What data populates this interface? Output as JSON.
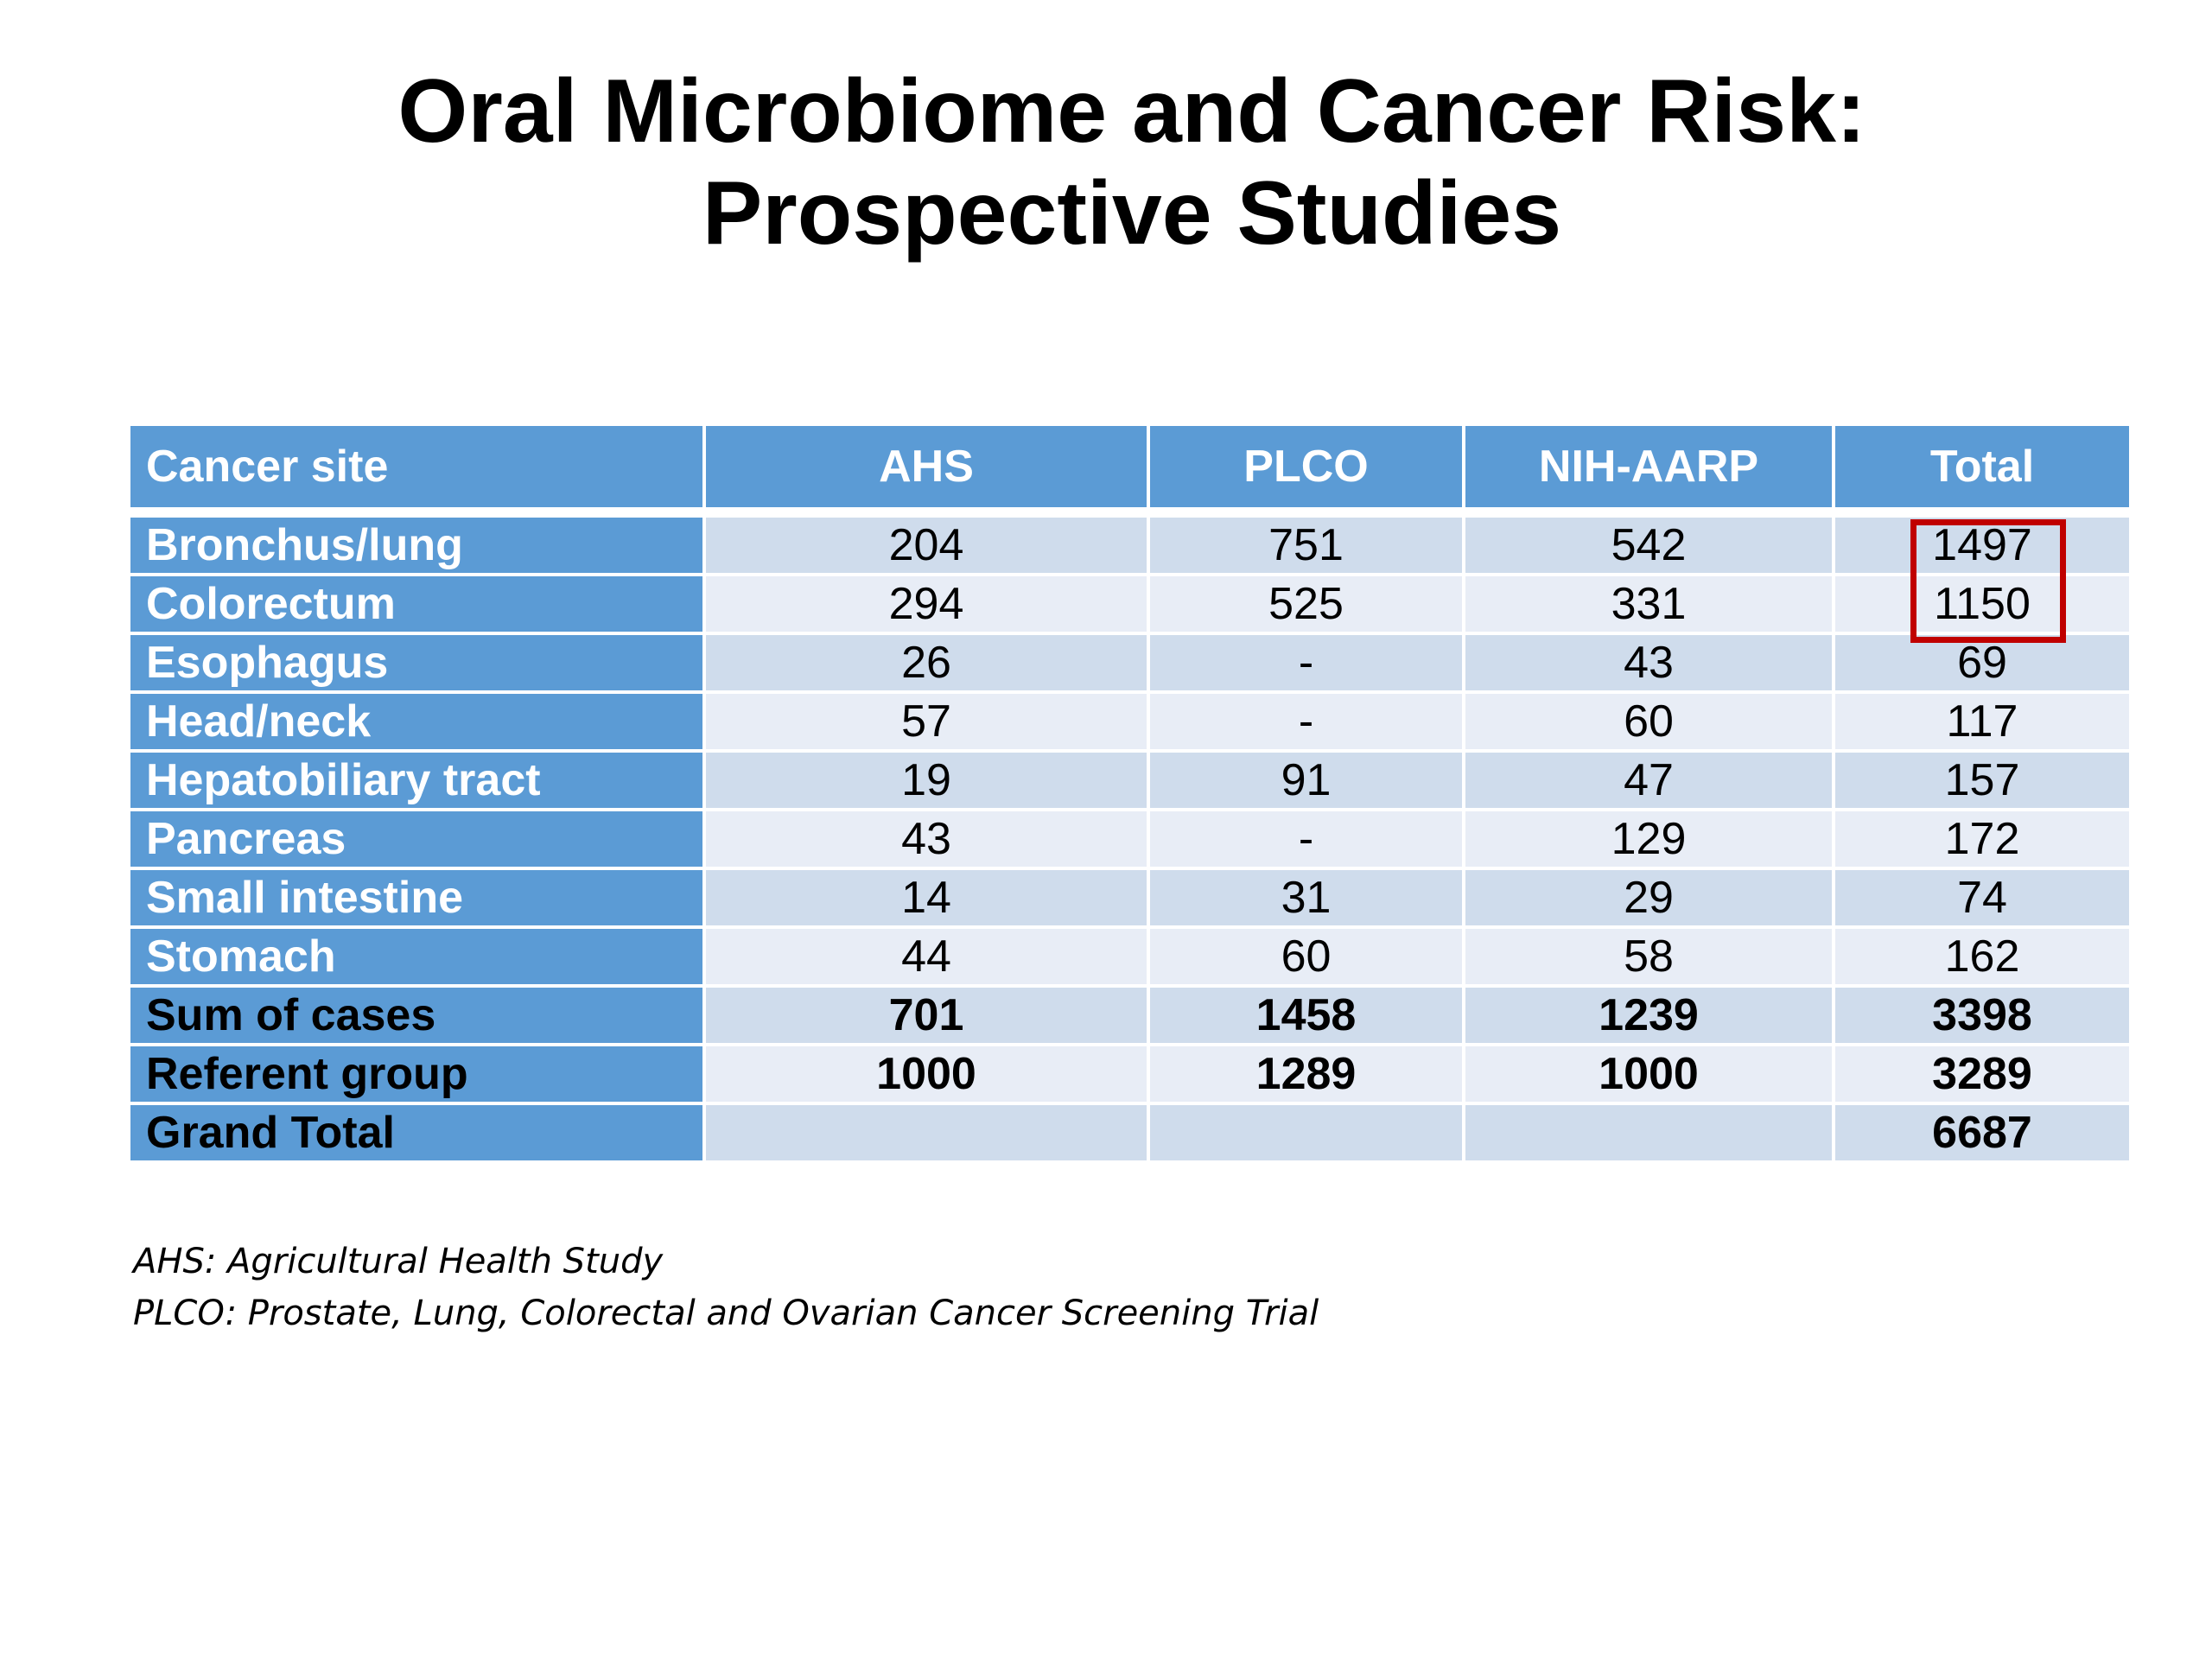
{
  "title": {
    "line1": "Oral Microbiome and Cancer Risk:",
    "line2": "Prospective Studies"
  },
  "table": {
    "headers": [
      "Cancer site",
      "AHS",
      "PLCO",
      "NIH-AARP",
      "Total"
    ],
    "rows": [
      {
        "site": "Bronchus/lung",
        "ahs": "204",
        "plco": "751",
        "nih": "542",
        "total": "1497"
      },
      {
        "site": "Colorectum",
        "ahs": "294",
        "plco": "525",
        "nih": "331",
        "total": "1150"
      },
      {
        "site": "Esophagus",
        "ahs": "26",
        "plco": "-",
        "nih": "43",
        "total": "69"
      },
      {
        "site": "Head/neck",
        "ahs": "57",
        "plco": "-",
        "nih": "60",
        "total": "117"
      },
      {
        "site": "Hepatobiliary tract",
        "ahs": "19",
        "plco": "91",
        "nih": "47",
        "total": "157"
      },
      {
        "site": "Pancreas",
        "ahs": "43",
        "plco": "-",
        "nih": "129",
        "total": "172"
      },
      {
        "site": "Small intestine",
        "ahs": "14",
        "plco": "31",
        "nih": "29",
        "total": "74"
      },
      {
        "site": "Stomach",
        "ahs": "44",
        "plco": "60",
        "nih": "58",
        "total": "162"
      },
      {
        "site": "Sum of cases",
        "ahs": "701",
        "plco": "1458",
        "nih": "1239",
        "total": "3398"
      },
      {
        "site": "Referent group",
        "ahs": "1000",
        "plco": "1289",
        "nih": "1000",
        "total": "3289"
      },
      {
        "site": "Grand Total",
        "ahs": "",
        "plco": "",
        "nih": "",
        "total": "6687"
      }
    ]
  },
  "highlight_color": "#c00000",
  "header_color": "#5b9bd5",
  "footnotes": {
    "ahs": "AHS: Agricultural Health Study",
    "plco": "PLCO: Prostate, Lung, Colorectal and Ovarian Cancer Screening Trial"
  }
}
